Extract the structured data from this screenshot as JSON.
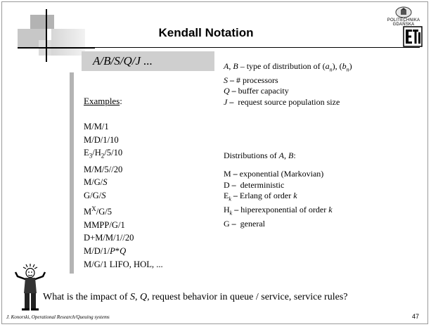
{
  "title": "Kendall Notation",
  "logo": {
    "line1": "POLITECHNIKA",
    "line2": "GDAŃSKA"
  },
  "notation": "A/B/S/Q/J ...",
  "definitions": [
    {
      "term": "A, B",
      "text": " – type of distribution of (a",
      "sub1": "n",
      "mid": "), (b",
      "sub2": "n",
      "end": ")"
    },
    {
      "term": "S",
      "text": " – # processors"
    },
    {
      "term": "Q",
      "text": " – buffer capacity"
    },
    {
      "term": "J",
      "text": " – request source population size"
    }
  ],
  "examples_label": "Examples",
  "examples": [
    "M/M/1",
    "M/D/1/10",
    "E3/H2/5/10",
    "M/M/5//20",
    "M/G/S",
    "G/G/S",
    "MX/G/5",
    "MMPP/G/1",
    "D+M/M/1//20",
    "M/D/1/P*Q",
    "M/G/1 LIFO, HOL, ..."
  ],
  "distributions_title": "Distributions of A, B:",
  "distributions": [
    {
      "sym": "M",
      "text": " exponential (Markovian)"
    },
    {
      "sym": "D",
      "text": "  deterministic"
    },
    {
      "sym": "Ek",
      "text": " Erlang of order k"
    },
    {
      "sym": "Hk",
      "text": " hiperexponential of order k"
    },
    {
      "sym": "G",
      "text": "  general"
    }
  ],
  "question": "What is the impact of S, Q, request behavior in queue / service, service rules?",
  "footer": "J. Konorski, Operational Research/Queuing systems",
  "page_number": "47"
}
